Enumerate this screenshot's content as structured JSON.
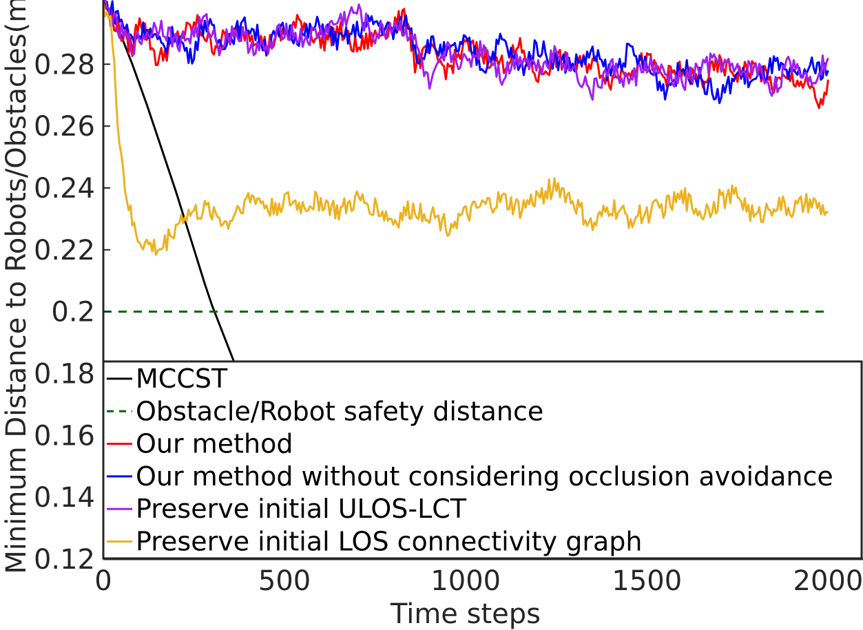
{
  "chart_data": {
    "type": "line",
    "title": "",
    "xlabel": "Time steps",
    "ylabel": "Minimum Distance to Robots/Obstacles(m)",
    "xlim": [
      0,
      2050
    ],
    "ylim": [
      0.12,
      0.3
    ],
    "x_ticks": [
      0,
      500,
      1000,
      1500,
      2000
    ],
    "x_tick_labels": [
      "0",
      "500",
      "1000",
      "1500",
      "2000"
    ],
    "y_ticks": [
      0.12,
      0.14,
      0.16,
      0.18,
      0.2,
      0.22,
      0.24,
      0.26,
      0.28
    ],
    "y_tick_labels": [
      "0.12",
      "0.14",
      "0.16",
      "0.18",
      "0.2",
      "0.22",
      "0.24",
      "0.26",
      "0.28"
    ],
    "grid": false,
    "legend_position": "bottom-right",
    "series": [
      {
        "name": "MCCST",
        "color": "#000000",
        "style": "solid",
        "x": [
          0,
          20,
          40,
          80,
          120,
          160,
          200,
          240,
          280,
          300,
          320,
          340,
          360,
          400,
          500
        ],
        "y": [
          0.3,
          0.296,
          0.292,
          0.28,
          0.267,
          0.253,
          0.239,
          0.224,
          0.209,
          0.202,
          0.196,
          0.19,
          0.184,
          0.17,
          0.14
        ]
      },
      {
        "name": "Obstacle/Robot safety distance",
        "color": "#006400",
        "style": "dashed",
        "x": [
          0,
          2000
        ],
        "y": [
          0.2,
          0.2
        ]
      },
      {
        "name": "Our method",
        "color": "#ff0000",
        "style": "solid",
        "x": [
          0,
          40,
          80,
          100,
          150,
          200,
          260,
          300,
          350,
          400,
          450,
          500,
          550,
          600,
          650,
          700,
          750,
          800,
          840,
          860,
          900,
          950,
          1000,
          1050,
          1100,
          1150,
          1200,
          1250,
          1300,
          1350,
          1400,
          1450,
          1500,
          1550,
          1600,
          1650,
          1700,
          1750,
          1800,
          1850,
          1900,
          1950,
          1980,
          2000
        ],
        "y": [
          0.3,
          0.292,
          0.285,
          0.296,
          0.281,
          0.288,
          0.293,
          0.286,
          0.289,
          0.291,
          0.286,
          0.29,
          0.294,
          0.287,
          0.291,
          0.285,
          0.289,
          0.293,
          0.295,
          0.28,
          0.284,
          0.278,
          0.286,
          0.283,
          0.28,
          0.285,
          0.276,
          0.282,
          0.279,
          0.281,
          0.275,
          0.279,
          0.281,
          0.276,
          0.278,
          0.274,
          0.28,
          0.277,
          0.279,
          0.273,
          0.276,
          0.272,
          0.266,
          0.275
        ]
      },
      {
        "name": "Our method without considering occlusion avoidance",
        "color": "#0000ff",
        "style": "solid",
        "x": [
          0,
          40,
          80,
          120,
          160,
          200,
          240,
          280,
          320,
          360,
          400,
          450,
          500,
          550,
          600,
          650,
          700,
          750,
          800,
          840,
          870,
          900,
          950,
          1000,
          1050,
          1100,
          1150,
          1200,
          1250,
          1300,
          1350,
          1400,
          1450,
          1500,
          1550,
          1600,
          1650,
          1700,
          1750,
          1800,
          1850,
          1900,
          1950,
          2000
        ],
        "y": [
          0.3,
          0.296,
          0.288,
          0.292,
          0.285,
          0.29,
          0.282,
          0.294,
          0.287,
          0.29,
          0.293,
          0.286,
          0.291,
          0.289,
          0.293,
          0.287,
          0.291,
          0.294,
          0.29,
          0.294,
          0.282,
          0.287,
          0.283,
          0.287,
          0.279,
          0.288,
          0.278,
          0.286,
          0.281,
          0.28,
          0.283,
          0.277,
          0.284,
          0.279,
          0.272,
          0.279,
          0.275,
          0.269,
          0.277,
          0.274,
          0.28,
          0.275,
          0.279,
          0.278
        ]
      },
      {
        "name": "Preserve initial ULOS-LCT",
        "color": "#a020f0",
        "style": "solid",
        "x": [
          0,
          40,
          80,
          120,
          160,
          200,
          240,
          280,
          320,
          360,
          400,
          450,
          500,
          550,
          600,
          650,
          700,
          750,
          800,
          850,
          880,
          900,
          950,
          1000,
          1050,
          1100,
          1150,
          1200,
          1250,
          1300,
          1350,
          1400,
          1450,
          1500,
          1550,
          1600,
          1650,
          1700,
          1750,
          1800,
          1850,
          1900,
          1950,
          2000
        ],
        "y": [
          0.3,
          0.291,
          0.286,
          0.29,
          0.293,
          0.287,
          0.289,
          0.294,
          0.286,
          0.291,
          0.287,
          0.284,
          0.292,
          0.288,
          0.29,
          0.294,
          0.297,
          0.289,
          0.293,
          0.29,
          0.28,
          0.272,
          0.284,
          0.28,
          0.286,
          0.276,
          0.283,
          0.279,
          0.284,
          0.278,
          0.271,
          0.279,
          0.274,
          0.28,
          0.276,
          0.274,
          0.279,
          0.281,
          0.277,
          0.279,
          0.272,
          0.281,
          0.275,
          0.282
        ]
      },
      {
        "name": "Preserve initial LOS connectivity graph",
        "color": "#edb120",
        "style": "solid",
        "x": [
          0,
          20,
          40,
          60,
          80,
          100,
          130,
          160,
          190,
          220,
          260,
          300,
          340,
          380,
          420,
          460,
          500,
          550,
          600,
          650,
          700,
          750,
          800,
          850,
          900,
          950,
          1000,
          1050,
          1100,
          1150,
          1200,
          1250,
          1300,
          1350,
          1400,
          1450,
          1500,
          1550,
          1600,
          1650,
          1700,
          1750,
          1800,
          1850,
          1900,
          1950,
          2000
        ],
        "y": [
          0.3,
          0.294,
          0.262,
          0.24,
          0.228,
          0.223,
          0.221,
          0.22,
          0.226,
          0.231,
          0.232,
          0.233,
          0.228,
          0.235,
          0.237,
          0.233,
          0.236,
          0.234,
          0.236,
          0.232,
          0.236,
          0.234,
          0.229,
          0.233,
          0.232,
          0.228,
          0.231,
          0.234,
          0.236,
          0.233,
          0.237,
          0.241,
          0.235,
          0.227,
          0.234,
          0.23,
          0.232,
          0.234,
          0.237,
          0.232,
          0.236,
          0.238,
          0.23,
          0.235,
          0.233,
          0.235,
          0.232
        ]
      }
    ]
  }
}
